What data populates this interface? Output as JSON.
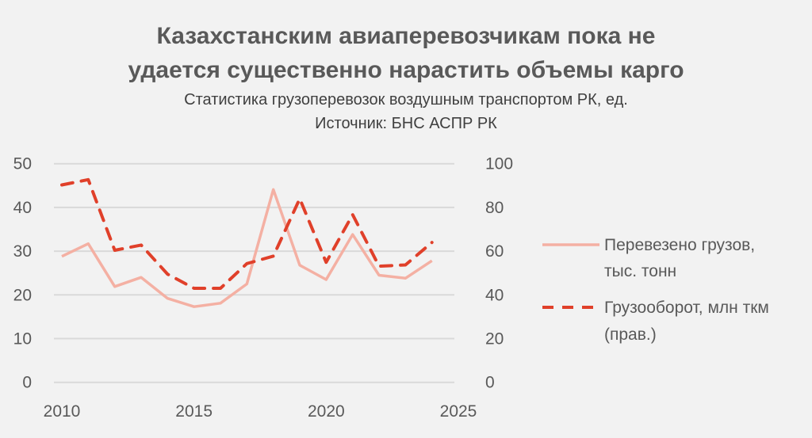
{
  "chart_data": {
    "type": "line",
    "title": "Казахстанским авиаперевозчикам пока не удается существенно нарастить объемы карго",
    "title_lines": [
      "Казахстанским авиаперевозчикам пока не",
      "удается существенно нарастить объемы карго"
    ],
    "subtitle": "Статистика грузоперевозок воздушным транспортом РК, ед.",
    "source": "Источник: БНС АСПР РК",
    "x": [
      2010,
      2011,
      2012,
      2013,
      2014,
      2015,
      2016,
      2017,
      2018,
      2019,
      2020,
      2021,
      2022,
      2023,
      2024
    ],
    "xlim": [
      2010,
      2025
    ],
    "x_ticks": [
      "2010",
      "2015",
      "2020",
      "2025"
    ],
    "ylim_left": [
      0,
      50
    ],
    "y_ticks_left": [
      "0",
      "10",
      "20",
      "30",
      "40",
      "50"
    ],
    "ylim_right": [
      0,
      100
    ],
    "y_ticks_right": [
      "0",
      "20",
      "40",
      "60",
      "80",
      "100"
    ],
    "grid": true,
    "legend_placement": "right",
    "series": [
      {
        "name": "Перевезено грузов, тыс. тонн",
        "name_lines": [
          "Перевезено грузов,",
          "тыс. тонн"
        ],
        "axis": "left",
        "style": "solid",
        "color": "#f4b0a3",
        "values": [
          28.8,
          31.7,
          21.9,
          24.0,
          19.2,
          17.3,
          18.1,
          22.5,
          44.1,
          26.8,
          23.5,
          33.8,
          24.5,
          23.8,
          27.8
        ]
      },
      {
        "name": "Грузооборот, млн ткм (прав.)",
        "name_lines": [
          "Грузооборот, млн ткм",
          "(прав.)"
        ],
        "axis": "right",
        "style": "dashed",
        "color": "#e0402a",
        "values": [
          90.3,
          92.7,
          60.4,
          62.8,
          49.5,
          43.0,
          43.0,
          54.3,
          57.7,
          84.0,
          54.9,
          76.7,
          53.1,
          53.7,
          64.0
        ]
      }
    ]
  }
}
